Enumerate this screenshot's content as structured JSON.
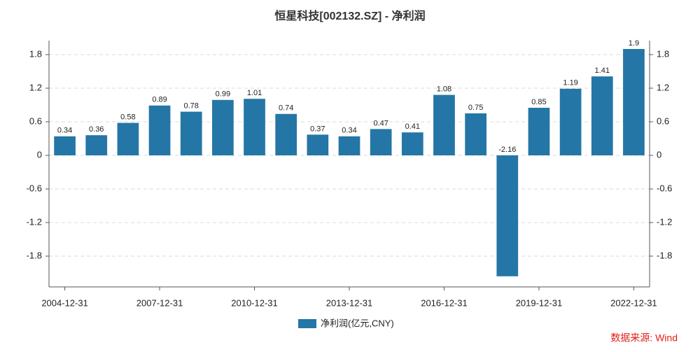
{
  "chart_data": {
    "type": "bar",
    "title": "恒星科技[002132.SZ] - 净利润",
    "categories": [
      "2004-12-31",
      null,
      null,
      "2007-12-31",
      null,
      null,
      "2010-12-31",
      null,
      null,
      "2013-12-31",
      null,
      null,
      "2016-12-31",
      null,
      null,
      "2019-12-31",
      null,
      null,
      "2022-12-31"
    ],
    "series": [
      {
        "name": "净利润(亿元,CNY)",
        "color": "#2476a6",
        "values": [
          0.34,
          0.36,
          0.58,
          0.89,
          0.78,
          0.99,
          1.01,
          0.74,
          0.37,
          0.34,
          0.47,
          0.41,
          1.08,
          0.75,
          -2.16,
          0.85,
          1.19,
          1.41,
          1.9
        ]
      }
    ],
    "ylim": [
      -2.35,
      2.05
    ],
    "yticks": [
      -1.8,
      -1.2,
      -0.6,
      0,
      0.6,
      1.2,
      1.8
    ],
    "y2lim": [
      -2.35,
      2.05
    ],
    "y2ticks": [
      -1.8,
      -1.2,
      -0.6,
      0,
      0.6,
      1.2,
      1.8
    ],
    "grid": true,
    "legend": "bottom",
    "source": "数据来源: Wind"
  }
}
